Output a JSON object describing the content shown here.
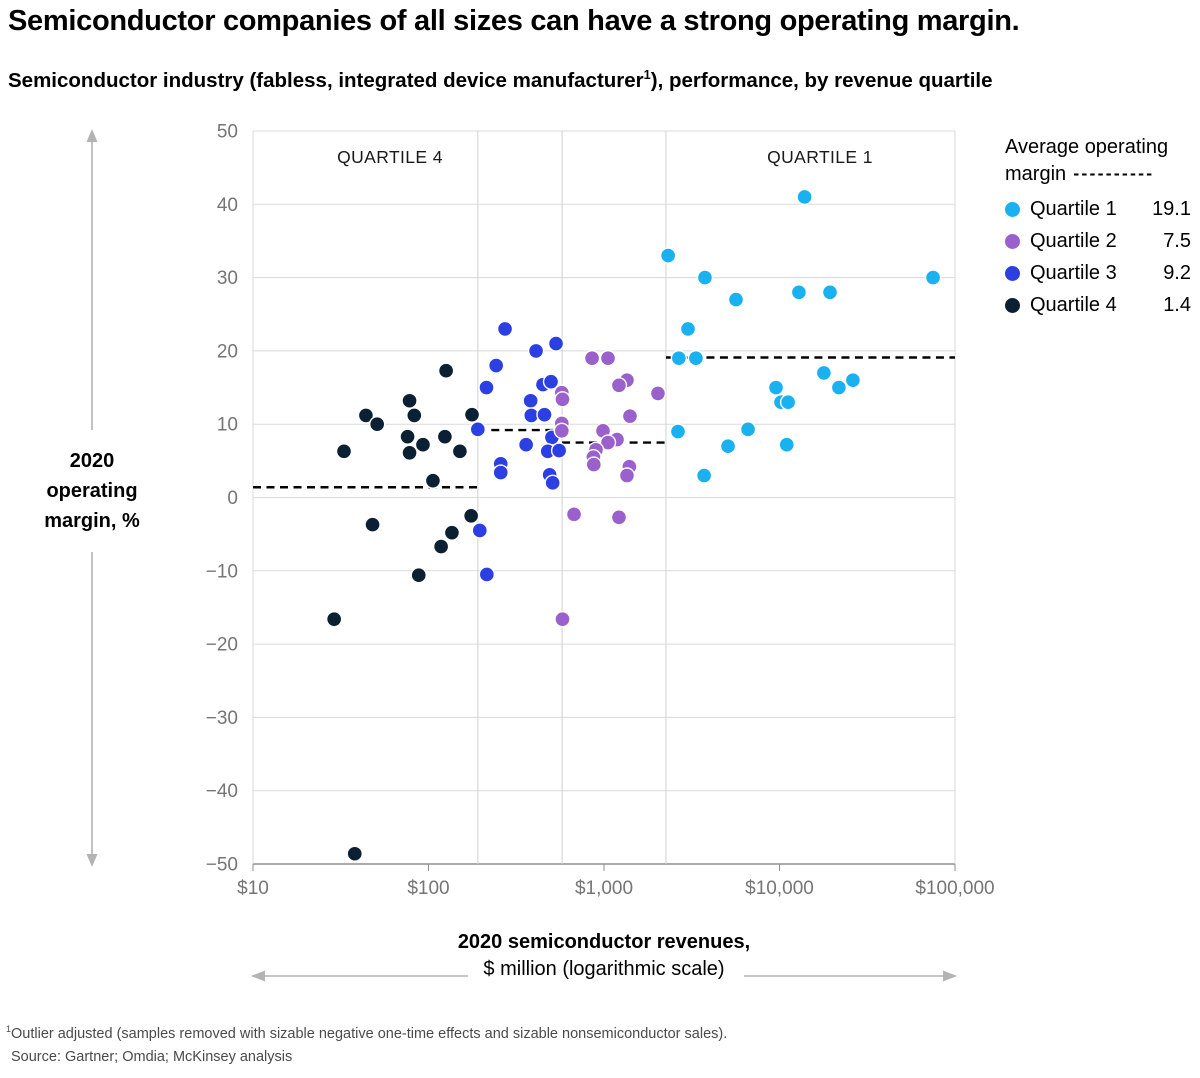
{
  "header": {
    "title": "Semiconductor companies of all sizes can have a strong operating margin.",
    "subtitle_prefix": "Semiconductor industry (fabless, integrated device manufacturer",
    "subtitle_sup": "1",
    "subtitle_suffix": "), performance, by revenue quartile"
  },
  "annotations": {
    "quartile4": "QUARTILE 4",
    "quartile1": "QUARTILE 1"
  },
  "axes": {
    "y_title": "2020\noperating\nmargin, %",
    "x_title_line1": "2020 semiconductor revenues,",
    "x_title_line2": "$ million (logarithmic scale)"
  },
  "legend": {
    "title": "Average operating margin",
    "items": [
      {
        "label": "Quartile 1",
        "value": "19.1"
      },
      {
        "label": "Quartile 2",
        "value": "7.5"
      },
      {
        "label": "Quartile 3",
        "value": "9.2"
      },
      {
        "label": "Quartile 4",
        "value": "1.4"
      }
    ]
  },
  "footnote": {
    "sup": "1",
    "text": "Outlier adjusted (samples removed with sizable negative one-time effects and sizable nonsemiconductor sales).",
    "source": "Source: Gartner; Omdia; McKinsey analysis"
  },
  "chart_data": {
    "type": "scatter",
    "title": "Semiconductor industry performance, by revenue quartile",
    "xlabel": "2020 semiconductor revenues, $ million (logarithmic scale)",
    "ylabel": "2020 operating margin, %",
    "x_axis": {
      "scale": "logarithmic",
      "min": 10,
      "max": 100000,
      "ticks": [
        {
          "v": 10,
          "label": "$10"
        },
        {
          "v": 100,
          "label": "$100"
        },
        {
          "v": 1000,
          "label": "$1,000"
        },
        {
          "v": 10000,
          "label": "$10,000"
        },
        {
          "v": 100000,
          "label": "$100,000"
        }
      ]
    },
    "y_axis": {
      "min": -50,
      "max": 50,
      "ticks": [
        {
          "v": 50,
          "label": "50"
        },
        {
          "v": 40,
          "label": "40"
        },
        {
          "v": 30,
          "label": "30"
        },
        {
          "v": 20,
          "label": "20"
        },
        {
          "v": 10,
          "label": "10"
        },
        {
          "v": 0,
          "label": "0"
        },
        {
          "v": -10,
          "label": "−10"
        },
        {
          "v": -20,
          "label": "−20"
        },
        {
          "v": -30,
          "label": "−30"
        },
        {
          "v": -40,
          "label": "−40"
        },
        {
          "v": -50,
          "label": "−50"
        }
      ]
    },
    "band_boundaries": [
      191,
      577,
      2254
    ],
    "series": [
      {
        "name": "Quartile 1",
        "color": "#19b1f0",
        "average": 19.1,
        "avg_line": {
          "from": 2254,
          "to": 100000
        },
        "points": [
          [
            13900,
            41
          ],
          [
            2320,
            33
          ],
          [
            3760,
            30
          ],
          [
            75000,
            30
          ],
          [
            12900,
            28
          ],
          [
            19400,
            28
          ],
          [
            5650,
            27
          ],
          [
            3010,
            23
          ],
          [
            2670,
            19
          ],
          [
            3340,
            19
          ],
          [
            17900,
            17
          ],
          [
            26200,
            16
          ],
          [
            9550,
            15
          ],
          [
            21800,
            15
          ],
          [
            10200,
            13
          ],
          [
            11200,
            13
          ],
          [
            2640,
            9
          ],
          [
            6620,
            9.3
          ],
          [
            5090,
            7
          ],
          [
            11000,
            7.2
          ],
          [
            3720,
            3
          ]
        ]
      },
      {
        "name": "Quartile 2",
        "color": "#9a60cb",
        "average": 7.5,
        "avg_line": {
          "from": 577,
          "to": 2254
        },
        "points": [
          [
            855,
            19
          ],
          [
            1054,
            19
          ],
          [
            1352,
            16
          ],
          [
            1217,
            15.3
          ],
          [
            575,
            14.3
          ],
          [
            2030,
            14.2
          ],
          [
            580,
            13.4
          ],
          [
            1406,
            11.1
          ],
          [
            575,
            10.1
          ],
          [
            575,
            9.1
          ],
          [
            987,
            9.1
          ],
          [
            1186,
            7.9
          ],
          [
            1054,
            7.5
          ],
          [
            900,
            6.5
          ],
          [
            870,
            5.5
          ],
          [
            875,
            4.5
          ],
          [
            1395,
            4.2
          ],
          [
            1352,
            3
          ],
          [
            675,
            -2.3
          ],
          [
            1217,
            -2.7
          ],
          [
            580,
            -16.6
          ]
        ]
      },
      {
        "name": "Quartile 3",
        "color": "#2b3fe3",
        "average": 9.2,
        "avg_line": {
          "from": 191,
          "to": 577
        },
        "points": [
          [
            273,
            23
          ],
          [
            533,
            21
          ],
          [
            410,
            20
          ],
          [
            243,
            18
          ],
          [
            214,
            15
          ],
          [
            449,
            15.4
          ],
          [
            499,
            15.8
          ],
          [
            382,
            13.2
          ],
          [
            385,
            11.2
          ],
          [
            458,
            11.3
          ],
          [
            191,
            9.3
          ],
          [
            505,
            8.2
          ],
          [
            360,
            7.2
          ],
          [
            478,
            6.3
          ],
          [
            555,
            6.4
          ],
          [
            258,
            4.6
          ],
          [
            258,
            3.4
          ],
          [
            490,
            3.1
          ],
          [
            510,
            2
          ],
          [
            196,
            -4.5
          ],
          [
            215,
            -10.5
          ]
        ]
      },
      {
        "name": "Quartile 4",
        "color": "#0b2033",
        "average": 1.4,
        "avg_line": {
          "from": 10,
          "to": 191
        },
        "points": [
          [
            126,
            17.3
          ],
          [
            78,
            13.2
          ],
          [
            44,
            11.2
          ],
          [
            83,
            11.2
          ],
          [
            177,
            11.3
          ],
          [
            51,
            10
          ],
          [
            76,
            8.3
          ],
          [
            124,
            8.3
          ],
          [
            93,
            7.2
          ],
          [
            33,
            6.3
          ],
          [
            78,
            6.1
          ],
          [
            151,
            6.3
          ],
          [
            106,
            2.3
          ],
          [
            175,
            -2.5
          ],
          [
            48,
            -3.7
          ],
          [
            136,
            -4.8
          ],
          [
            118,
            -6.7
          ],
          [
            88,
            -10.6
          ],
          [
            29,
            -16.6
          ],
          [
            38,
            -48.6
          ]
        ]
      }
    ],
    "legend_position": "top-right",
    "grid": true
  }
}
